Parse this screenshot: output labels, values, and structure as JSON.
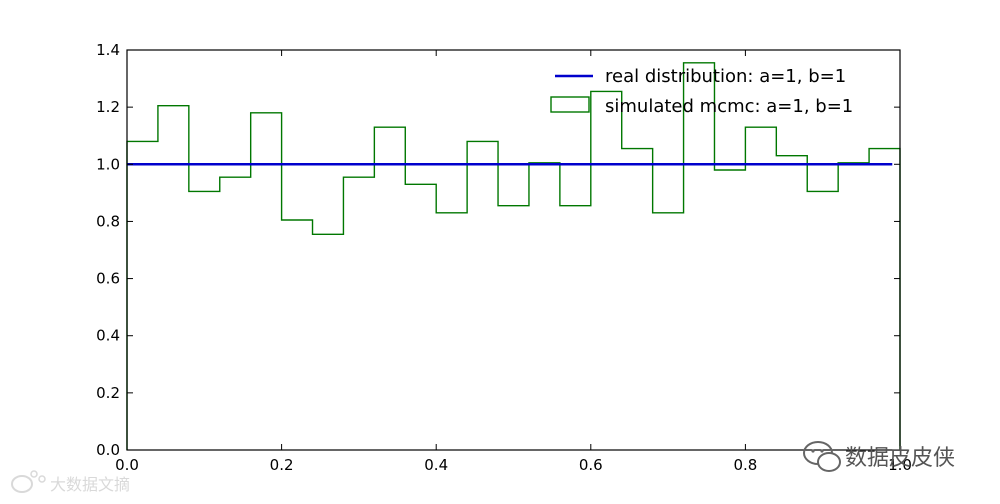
{
  "chart_data": {
    "type": "histogram",
    "xlim": [
      0.0,
      1.0
    ],
    "ylim": [
      0.0,
      1.4
    ],
    "xticks": [
      "0.0",
      "0.2",
      "0.4",
      "0.6",
      "0.8",
      "1.0"
    ],
    "yticks": [
      "0.0",
      "0.2",
      "0.4",
      "0.6",
      "0.8",
      "1.0",
      "1.2",
      "1.4"
    ],
    "grid": false,
    "legend_position": "top-right",
    "series": [
      {
        "name": "real distribution: a=1, b=1",
        "kind": "line",
        "color": "#0000cc",
        "x": [
          0.0,
          0.99
        ],
        "y": [
          1.0,
          1.0
        ]
      },
      {
        "name": "simulated mcmc: a=1, b=1",
        "kind": "step-histogram",
        "color": "#007700",
        "bin_edges": [
          0.0,
          0.04,
          0.08,
          0.12,
          0.16,
          0.2,
          0.24,
          0.28,
          0.32,
          0.36,
          0.4,
          0.44,
          0.48,
          0.52,
          0.56,
          0.6,
          0.64,
          0.68,
          0.72,
          0.76,
          0.8,
          0.84,
          0.88,
          0.92,
          0.96,
          1.0
        ],
        "values": [
          1.08,
          1.205,
          0.905,
          0.955,
          1.18,
          0.805,
          0.755,
          0.955,
          1.13,
          0.93,
          0.83,
          1.08,
          0.855,
          1.005,
          0.855,
          1.255,
          1.055,
          0.83,
          1.355,
          0.98,
          1.13,
          1.03,
          0.905,
          1.005,
          1.055
        ]
      }
    ]
  },
  "watermarks": {
    "bottom_right_text": "数据皮皮侠",
    "bottom_left_text": "大数据文摘",
    "bottom_left_color": "#cccccc",
    "bottom_right_color": "#555555"
  }
}
